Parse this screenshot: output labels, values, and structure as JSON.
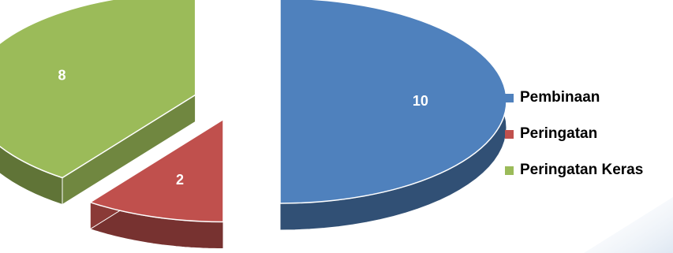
{
  "chart_data": {
    "type": "pie",
    "style": "3d-exploded",
    "categories": [
      "Pembinaan",
      "Peringatan",
      "Peringatan Keras"
    ],
    "values": [
      10,
      2,
      8
    ],
    "data_labels": [
      "10",
      "2",
      "8"
    ],
    "colors": [
      "#4F81BD",
      "#C0504D",
      "#9BBB59"
    ],
    "legend_position": "right"
  }
}
